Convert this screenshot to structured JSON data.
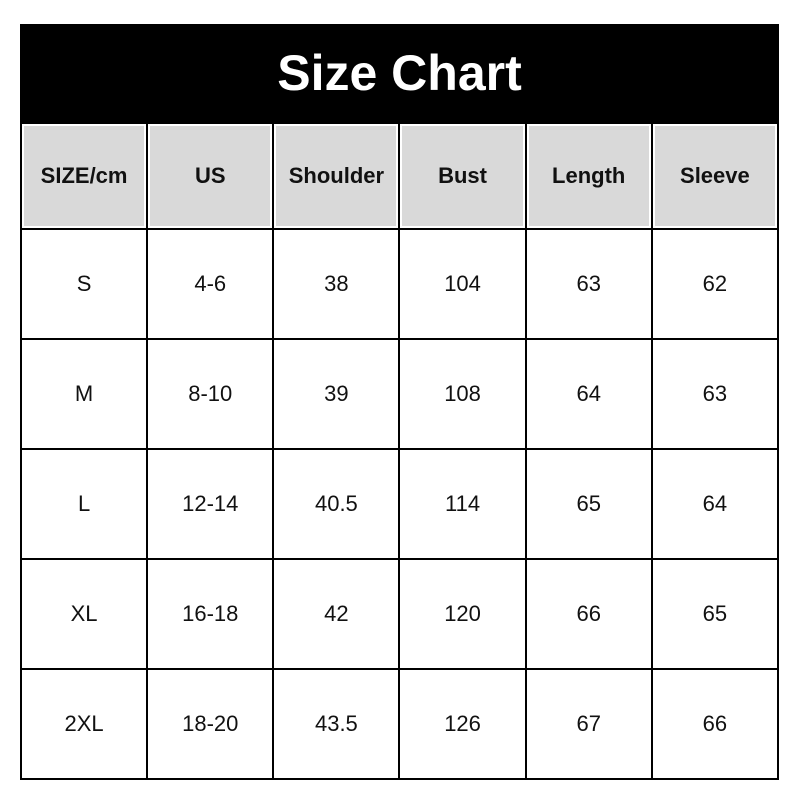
{
  "title": "Size Chart",
  "headers": [
    "SIZE/cm",
    "US",
    "Shoulder",
    "Bust",
    "Length",
    "Sleeve"
  ],
  "rows": [
    [
      "S",
      "4-6",
      "38",
      "104",
      "63",
      "62"
    ],
    [
      "M",
      "8-10",
      "39",
      "108",
      "64",
      "63"
    ],
    [
      "L",
      "12-14",
      "40.5",
      "114",
      "65",
      "64"
    ],
    [
      "XL",
      "16-18",
      "42",
      "120",
      "66",
      "65"
    ],
    [
      "2XL",
      "18-20",
      "43.5",
      "126",
      "67",
      "66"
    ]
  ],
  "colors": {
    "title_bg": "#000000",
    "header_bg": "#d9d9d9"
  }
}
